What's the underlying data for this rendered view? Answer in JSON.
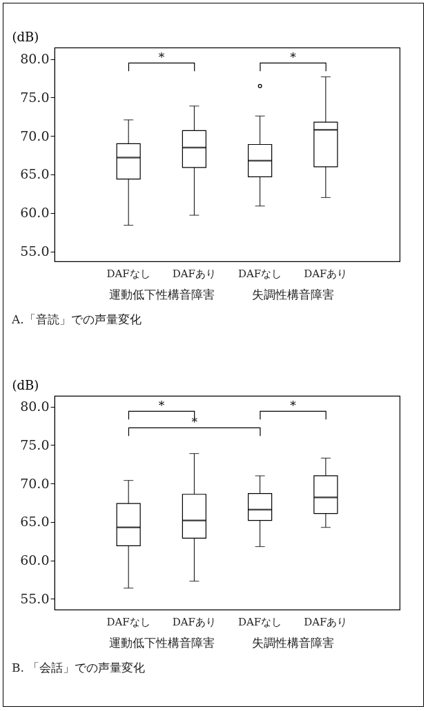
{
  "chart_data": [
    {
      "type": "box",
      "title": "A.「音読」での声量変化",
      "ylabel": "(dB)",
      "categories": [
        "DAFなし",
        "DAFあり",
        "DAFなし",
        "DAFあり"
      ],
      "boxes": [
        {
          "low": 58.4,
          "q1": 64.4,
          "median": 67.2,
          "q3": 69.0,
          "high": 72.1
        },
        {
          "low": 59.7,
          "q1": 65.9,
          "median": 68.5,
          "q3": 70.7,
          "high": 73.9
        },
        {
          "low": 60.9,
          "q1": 64.7,
          "median": 66.8,
          "q3": 68.9,
          "high": 72.6,
          "outliers": [
            76.5
          ]
        },
        {
          "low": 62.0,
          "q1": 66.0,
          "median": 70.8,
          "q3": 71.8,
          "high": 77.7
        }
      ],
      "ylim": [
        53.7,
        81.5
      ],
      "yticks": [
        {
          "value": 55,
          "label": "55.0"
        },
        {
          "value": 60,
          "label": "60.0"
        },
        {
          "value": 65,
          "label": "65.0"
        },
        {
          "value": 70,
          "label": "70.0"
        },
        {
          "value": 75,
          "label": "75.0"
        },
        {
          "value": 80,
          "label": "80.0"
        }
      ],
      "annotations": [
        "運動低下性構音障害",
        "失調性構音障害",
        "*",
        "*"
      ]
    },
    {
      "type": "box",
      "title": "B. 「会話」での声量変化",
      "ylabel": "(dB)",
      "categories": [
        "DAFなし",
        "DAFあり",
        "DAFなし",
        "DAFあり"
      ],
      "boxes": [
        {
          "low": 56.4,
          "q1": 61.9,
          "median": 64.3,
          "q3": 67.4,
          "high": 70.4
        },
        {
          "low": 57.3,
          "q1": 62.9,
          "median": 65.2,
          "q3": 68.6,
          "high": 73.9
        },
        {
          "low": 61.8,
          "q1": 65.2,
          "median": 66.6,
          "q3": 68.7,
          "high": 71.0
        },
        {
          "low": 64.3,
          "q1": 66.1,
          "median": 68.2,
          "q3": 71.0,
          "high": 73.3
        }
      ],
      "ylim": [
        53.6,
        81.4
      ],
      "yticks": [
        {
          "value": 55,
          "label": "55.0"
        },
        {
          "value": 60,
          "label": "60.0"
        },
        {
          "value": 65,
          "label": "65.0"
        },
        {
          "value": 70,
          "label": "70.0"
        },
        {
          "value": 75,
          "label": "75.0"
        },
        {
          "value": 80,
          "label": "80.0"
        }
      ],
      "annotations": [
        "運動低下性構音障害",
        "失調性構音障害",
        "*",
        "*",
        "*"
      ]
    }
  ]
}
